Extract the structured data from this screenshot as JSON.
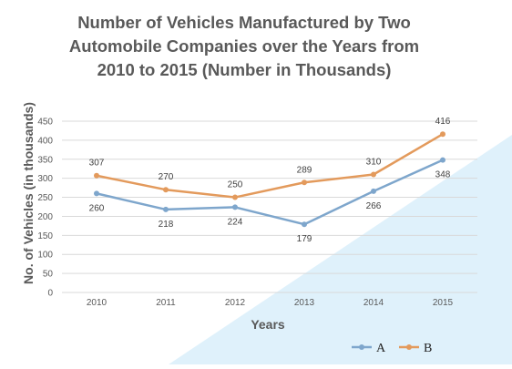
{
  "colors": {
    "series_A": "#7ea6cc",
    "series_B": "#e39a5c",
    "grid": "#d9d9d9",
    "background_accent": "#dff1fb"
  },
  "chart_data": {
    "type": "line",
    "title_lines": [
      "Number of Vehicles Manufactured by Two",
      "Automobile Companies over the Years from",
      "2010 to 2015  (Number in Thousands)"
    ],
    "xlabel": "Years",
    "ylabel": "No. of Vehicles (in thousands)",
    "x": [
      "2010",
      "2011",
      "2012",
      "2013",
      "2014",
      "2015"
    ],
    "ylim": [
      0,
      450
    ],
    "yticks": [
      0,
      50,
      100,
      150,
      200,
      250,
      300,
      350,
      400,
      450
    ],
    "grid": true,
    "legend_position": "bottom-right",
    "series": [
      {
        "name": "A",
        "values": [
          260,
          218,
          224,
          179,
          266,
          348
        ]
      },
      {
        "name": "B",
        "values": [
          307,
          270,
          250,
          289,
          310,
          416
        ]
      }
    ]
  }
}
